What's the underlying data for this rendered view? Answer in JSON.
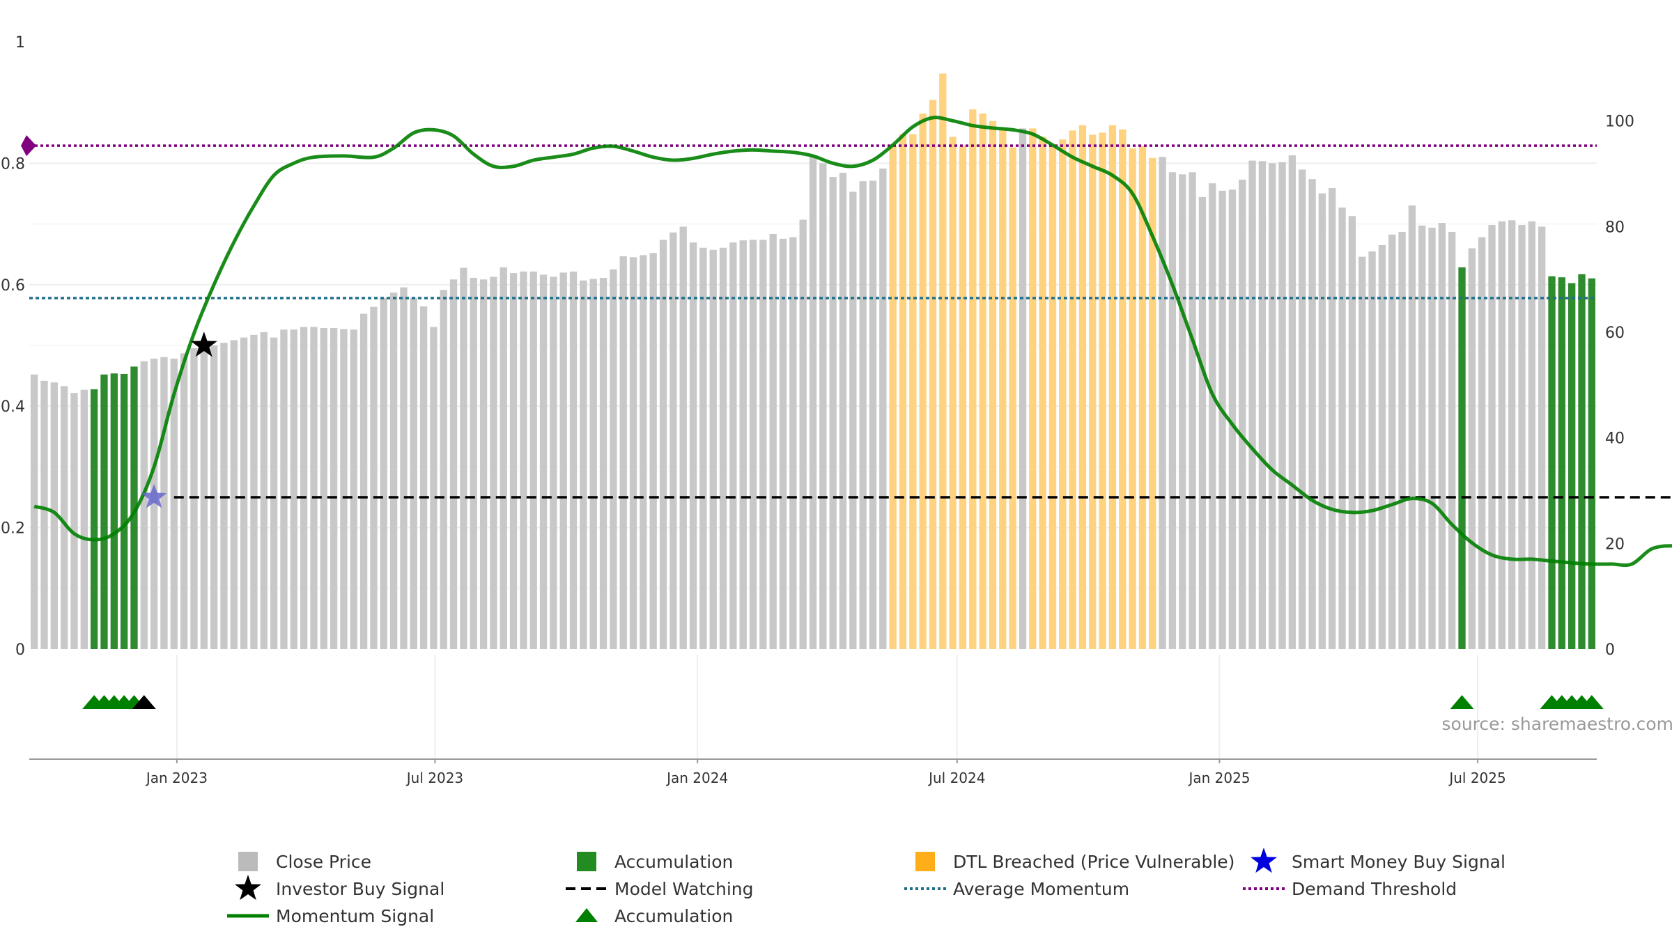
{
  "chart_data": {
    "type": "bar",
    "title": "",
    "source_label": "source: sharemaestro.com",
    "x_tick_labels": [
      "Jan 2023",
      "Jul 2023",
      "Jan 2024",
      "Jul 2024",
      "Jan 2025",
      "Jul 2025"
    ],
    "left_axis": {
      "range": [
        0,
        1
      ],
      "ticks": [
        "0",
        "0.2",
        "0.4",
        "0.6",
        "0.8",
        "1"
      ]
    },
    "right_axis": {
      "range": [
        0,
        115
      ],
      "ticks": [
        "0",
        "20",
        "40",
        "60",
        "80",
        "100"
      ]
    },
    "bars": {
      "name": "Close Price",
      "categories_start": "2022-09-23",
      "interval_days": 7,
      "values": [
        52.0,
        50.8,
        50.5,
        49.8,
        48.5,
        49.1,
        49.2,
        52.0,
        52.2,
        52.1,
        53.5,
        54.5,
        55.0,
        55.3,
        55.0,
        56.0,
        57.0,
        57.5,
        57.5,
        58.0,
        58.5,
        59.0,
        59.5,
        60.0,
        59.0,
        60.5,
        60.5,
        61.0,
        61.0,
        60.8,
        60.8,
        60.6,
        60.5,
        63.5,
        64.8,
        66.5,
        67.5,
        68.5,
        66.5,
        64.9,
        61.0,
        68.0,
        70.0,
        72.2,
        70.3,
        70.0,
        70.5,
        72.3,
        71.2,
        71.5,
        71.5,
        70.9,
        70.5,
        71.3,
        71.5,
        69.8,
        70.1,
        70.3,
        71.9,
        74.4,
        74.2,
        74.6,
        75.0,
        77.5,
        78.9,
        80.0,
        77.0,
        76.0,
        75.6,
        76.0,
        77.0,
        77.4,
        77.5,
        77.5,
        78.6,
        77.7,
        78.0,
        81.3,
        93.4,
        92.0,
        89.4,
        90.2,
        86.6,
        88.6,
        88.7,
        91.0,
        95.3,
        97.5,
        97.5,
        101.4,
        104.0,
        109.0,
        97.0,
        95.3,
        102.2,
        101.4,
        100.0,
        98.4,
        95.0,
        98.6,
        98.6,
        97.0,
        95.3,
        96.5,
        98.2,
        99.2,
        97.4,
        97.8,
        99.2,
        98.4,
        94.8,
        95.3,
        93.0,
        93.2,
        90.3,
        89.9,
        90.3,
        85.6,
        88.2,
        86.8,
        87.0,
        88.9,
        92.5,
        92.4,
        92.0,
        92.2,
        93.5,
        90.8,
        89.0,
        86.3,
        87.3,
        83.6,
        82.0,
        74.3,
        75.3,
        76.5,
        78.5,
        79.0,
        84.0,
        80.2,
        79.8,
        80.7,
        79.0,
        72.3,
        75.9,
        78.0,
        80.3,
        81.0,
        81.2,
        80.3,
        81.0,
        80.0,
        70.6,
        70.4,
        69.3,
        71.0,
        70.2
      ],
      "colors": {
        "normal": "#c8c8c8",
        "accumulation": "#2e8b2e",
        "dtl_breached": "#ffd280"
      },
      "accumulation_indices": [
        6,
        7,
        8,
        9,
        10,
        143,
        152,
        153,
        154,
        155,
        156
      ],
      "dtl_breached_range": [
        86,
        112
      ],
      "dtl_normal_indices": [
        99
      ]
    },
    "momentum_signal": {
      "name": "Momentum Signal",
      "color": "#008000",
      "points": [
        [
          0,
          0.235
        ],
        [
          2,
          0.225
        ],
        [
          4,
          0.19
        ],
        [
          6,
          0.18
        ],
        [
          8,
          0.19
        ],
        [
          10,
          0.225
        ],
        [
          12,
          0.3
        ],
        [
          14,
          0.42
        ],
        [
          16,
          0.52
        ],
        [
          18,
          0.6
        ],
        [
          20,
          0.67
        ],
        [
          22,
          0.73
        ],
        [
          24,
          0.78
        ],
        [
          26,
          0.8
        ],
        [
          28,
          0.81
        ],
        [
          31,
          0.812
        ],
        [
          34,
          0.81
        ],
        [
          36,
          0.825
        ],
        [
          38,
          0.85
        ],
        [
          40,
          0.855
        ],
        [
          42,
          0.845
        ],
        [
          44,
          0.815
        ],
        [
          46,
          0.795
        ],
        [
          48,
          0.795
        ],
        [
          50,
          0.805
        ],
        [
          52,
          0.81
        ],
        [
          54,
          0.815
        ],
        [
          56,
          0.825
        ],
        [
          58,
          0.828
        ],
        [
          60,
          0.82
        ],
        [
          62,
          0.81
        ],
        [
          64,
          0.805
        ],
        [
          66,
          0.808
        ],
        [
          68,
          0.815
        ],
        [
          70,
          0.82
        ],
        [
          72,
          0.822
        ],
        [
          74,
          0.82
        ],
        [
          76,
          0.818
        ],
        [
          78,
          0.812
        ],
        [
          80,
          0.8
        ],
        [
          82,
          0.795
        ],
        [
          84,
          0.805
        ],
        [
          86,
          0.83
        ],
        [
          88,
          0.86
        ],
        [
          90,
          0.875
        ],
        [
          92,
          0.87
        ],
        [
          94,
          0.862
        ],
        [
          96,
          0.858
        ],
        [
          98,
          0.855
        ],
        [
          100,
          0.848
        ],
        [
          102,
          0.83
        ],
        [
          104,
          0.81
        ],
        [
          106,
          0.795
        ],
        [
          108,
          0.78
        ],
        [
          110,
          0.75
        ],
        [
          112,
          0.68
        ],
        [
          114,
          0.6
        ],
        [
          116,
          0.51
        ],
        [
          118,
          0.42
        ],
        [
          120,
          0.37
        ],
        [
          122,
          0.33
        ],
        [
          124,
          0.295
        ],
        [
          126,
          0.27
        ],
        [
          128,
          0.245
        ],
        [
          130,
          0.23
        ],
        [
          132,
          0.225
        ],
        [
          134,
          0.228
        ],
        [
          136,
          0.238
        ],
        [
          138,
          0.248
        ],
        [
          140,
          0.24
        ],
        [
          142,
          0.205
        ],
        [
          144,
          0.175
        ],
        [
          146,
          0.155
        ],
        [
          148,
          0.148
        ],
        [
          150,
          0.148
        ],
        [
          152,
          0.145
        ],
        [
          154,
          0.142
        ],
        [
          156,
          0.14
        ],
        [
          158,
          0.14
        ],
        [
          160,
          0.14
        ],
        [
          162,
          0.165
        ],
        [
          164,
          0.17
        ],
        [
          165,
          0.165
        ]
      ]
    },
    "demand_threshold": {
      "name": "Demand Threshold",
      "value": 0.829,
      "color": "#800080"
    },
    "average_momentum": {
      "name": "Average Momentum",
      "value": 0.578,
      "color": "#1f6f8b"
    },
    "model_watching": {
      "name": "Model Watching",
      "value": 0.25,
      "from_index": 14,
      "to_index": 164,
      "color": "#000000"
    },
    "signals": {
      "investor_buy": {
        "name": "Investor Buy Signal",
        "index": 17,
        "value": 0.5,
        "color": "#000000"
      },
      "smart_money_buy": {
        "name": "Smart Money Buy Signal",
        "index": 12,
        "value": 0.25,
        "color": "#6666cc"
      },
      "threshold_marker": {
        "value": 0.829,
        "color": "#800080"
      }
    },
    "triangles": {
      "name": "Accumulation",
      "green_indices": [
        6,
        7,
        8,
        9,
        10,
        143,
        152,
        153,
        154,
        155,
        156
      ],
      "black_indices": [
        11
      ]
    },
    "legend": [
      {
        "label": "Close Price",
        "symbol": "square",
        "color": "#bbbbbb"
      },
      {
        "label": "Accumulation",
        "symbol": "square",
        "color": "#228b22"
      },
      {
        "label": "DTL Breached (Price Vulnerable)",
        "symbol": "square",
        "color": "#ffae1a"
      },
      {
        "label": "Smart Money Buy Signal",
        "symbol": "star",
        "color": "#0000dd"
      },
      {
        "label": "Investor Buy Signal",
        "symbol": "star",
        "color": "#000000"
      },
      {
        "label": "Model Watching",
        "symbol": "dash",
        "color": "#000000"
      },
      {
        "label": "Average Momentum",
        "symbol": "dot",
        "color": "#1f6f8b"
      },
      {
        "label": "Demand Threshold",
        "symbol": "dot",
        "color": "#800080"
      },
      {
        "label": "Momentum Signal",
        "symbol": "line",
        "color": "#008000"
      },
      {
        "label": "Accumulation",
        "symbol": "triangle",
        "color": "#008000"
      }
    ]
  }
}
